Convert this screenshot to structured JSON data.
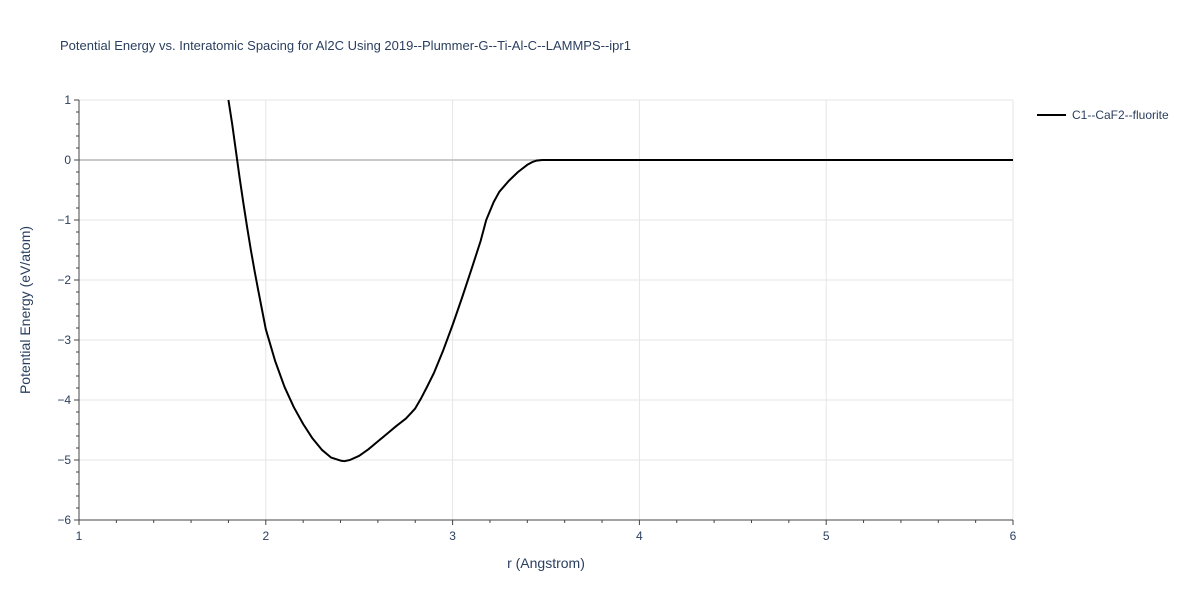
{
  "chart_data": {
    "type": "line",
    "title": "Potential Energy vs. Interatomic Spacing for Al2C Using 2019--Plummer-G--Ti-Al-C--LAMMPS--ipr1",
    "xlabel": "r (Angstrom)",
    "ylabel": "Potential Energy (eV/atom)",
    "xlim": [
      1,
      6
    ],
    "ylim": [
      -6,
      1
    ],
    "x_ticks": [
      "1",
      "2",
      "3",
      "4",
      "5",
      "6"
    ],
    "y_ticks": [
      "1",
      "0",
      "−1",
      "−2",
      "−3",
      "−4",
      "−5",
      "−6"
    ],
    "grid": true,
    "legend_position": "top-right",
    "series": [
      {
        "name": "C1--CaF2--fluorite",
        "color": "#000000",
        "x": [
          1.8,
          1.82,
          1.84,
          1.86,
          1.88,
          1.9,
          1.92,
          1.94,
          1.96,
          1.98,
          2.0,
          2.05,
          2.1,
          2.15,
          2.2,
          2.25,
          2.3,
          2.35,
          2.4,
          2.42,
          2.45,
          2.5,
          2.55,
          2.6,
          2.65,
          2.7,
          2.75,
          2.78,
          2.8,
          2.83,
          2.86,
          2.9,
          2.95,
          3.0,
          3.05,
          3.1,
          3.15,
          3.18,
          3.2,
          3.22,
          3.25,
          3.3,
          3.35,
          3.4,
          3.43,
          3.45,
          3.48,
          3.5,
          3.6,
          4.0,
          5.0,
          6.0
        ],
        "y": [
          1.0,
          0.6,
          0.15,
          -0.3,
          -0.72,
          -1.12,
          -1.5,
          -1.85,
          -2.18,
          -2.5,
          -2.82,
          -3.35,
          -3.78,
          -4.12,
          -4.4,
          -4.64,
          -4.83,
          -4.96,
          -5.01,
          -5.02,
          -5.0,
          -4.93,
          -4.82,
          -4.69,
          -4.56,
          -4.43,
          -4.31,
          -4.21,
          -4.14,
          -3.98,
          -3.8,
          -3.55,
          -3.17,
          -2.75,
          -2.3,
          -1.83,
          -1.35,
          -1.0,
          -0.85,
          -0.7,
          -0.53,
          -0.35,
          -0.2,
          -0.08,
          -0.03,
          -0.01,
          0.0,
          0.0,
          0.0,
          0.0,
          0.0,
          0.0
        ]
      }
    ]
  }
}
